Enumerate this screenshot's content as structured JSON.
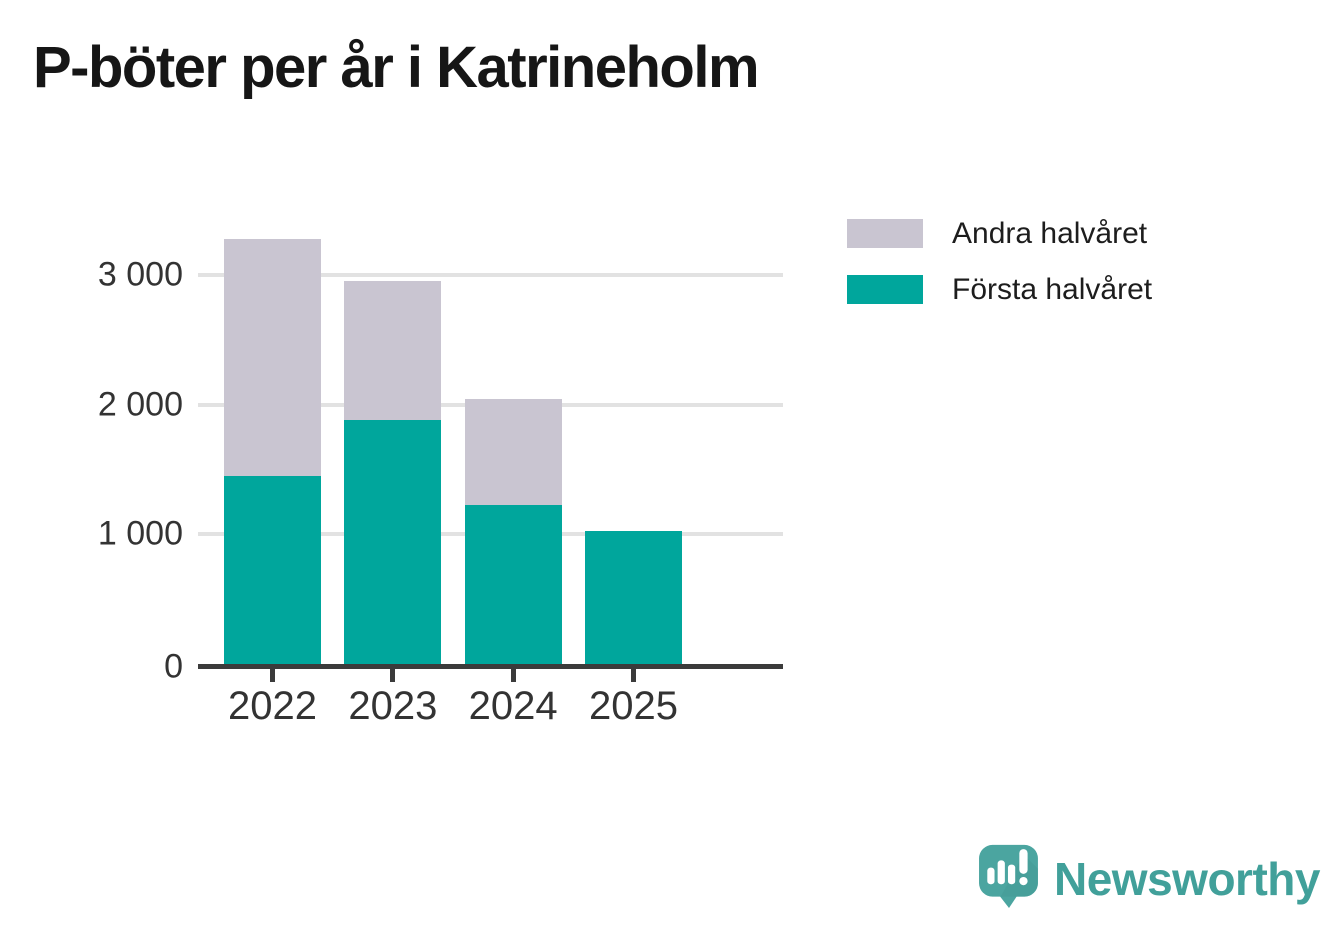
{
  "chart_data": {
    "type": "bar",
    "stacked": true,
    "title": "P-böter per år i Katrineholm",
    "categories": [
      "2022",
      "2023",
      "2024",
      "2025"
    ],
    "series": [
      {
        "name": "Första halvåret",
        "color": "#00a69c",
        "values": [
          1450,
          1880,
          1225,
          1025
        ]
      },
      {
        "name": "Andra halvåret",
        "color": "#c9c5d1",
        "values": [
          1830,
          1075,
          820,
          0
        ]
      }
    ],
    "totals": [
      3280,
      2955,
      2045,
      1025
    ],
    "yticks": [
      0,
      1000,
      2000,
      3000
    ],
    "ytick_labels": [
      "0",
      "1 000",
      "2 000",
      "3 000"
    ],
    "ylim": [
      0,
      3500
    ],
    "xlabel": "",
    "ylabel": "",
    "grid": "horizontal",
    "legend_position": "top-right",
    "legend_order": [
      "Andra halvåret",
      "Första halvåret"
    ],
    "axis_color": "#3b3b3b",
    "gridline_color": "#e2e2e2",
    "tick_label_color": "#333333"
  },
  "branding": {
    "logo_text": "Newsworthy",
    "logo_text_color": "#41a09a",
    "bubble_color": "#4ba5a0"
  }
}
